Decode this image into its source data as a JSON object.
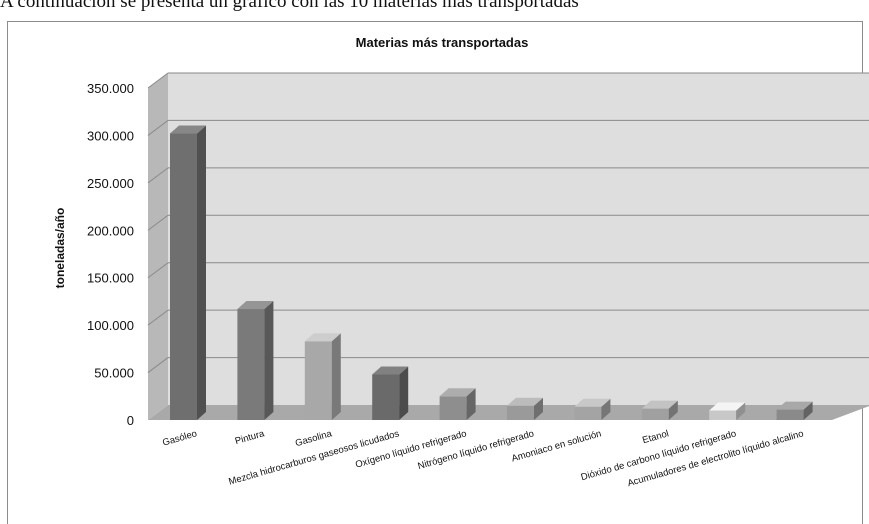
{
  "intro_text": "A continuación se presenta un gráfico con las 10 materias más transportadas",
  "chart_data": {
    "type": "bar",
    "title": "Materias más transportadas",
    "xlabel": "",
    "ylabel": "toneladas/año",
    "ylim": [
      0,
      350000
    ],
    "yticks": [
      "0",
      "50.000",
      "100.000",
      "150.000",
      "200.000",
      "250.000",
      "300.000",
      "350.000"
    ],
    "categories": [
      "Gasóleo",
      "Pintura",
      "Gasolina",
      "Mezcla hidrocarburos gaseosos licudados",
      "Oxígeno líquido refrigerado",
      "Nitrógeno líquido refrigerado",
      "Amoniaco en solución",
      "Etanol",
      "Dióxido de carbono líquido refrigerado",
      "Acumuladores de electrolito líquido alcalino"
    ],
    "values": [
      302000,
      117000,
      83000,
      48000,
      25000,
      15000,
      14000,
      12000,
      10000,
      11000
    ],
    "bar_colors": [
      "#6f6f6f",
      "#7a7a7a",
      "#a8a8a8",
      "#6a6a6a",
      "#8e8e8e",
      "#9a9a9a",
      "#a4a4a4",
      "#a0a0a0",
      "#c8c8c8",
      "#8a8a8a"
    ],
    "grid": true,
    "legend": "none"
  }
}
